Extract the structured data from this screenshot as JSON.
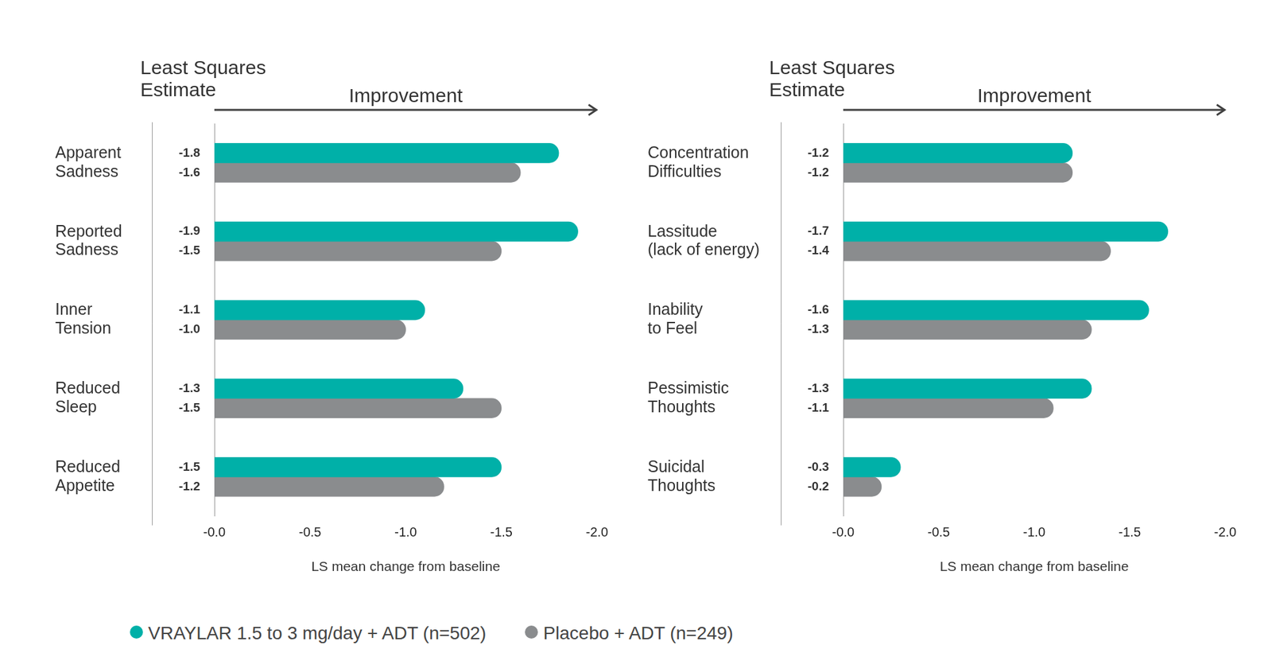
{
  "chart_data": [
    {
      "type": "bar",
      "orientation": "horizontal",
      "annotations": [
        {
          "text": [
            "Least Squares",
            "Estimate"
          ]
        },
        {
          "text": "Improvement"
        }
      ],
      "categories": [
        [
          "Apparent",
          "Sadness"
        ],
        [
          "Reported",
          "Sadness"
        ],
        [
          "Inner",
          "Tension"
        ],
        [
          "Reduced",
          "Sleep"
        ],
        [
          "Reduced",
          "Appetite"
        ]
      ],
      "series": [
        {
          "name": "VRAYLAR 1.5 to 3 mg/day + ADT (n=502)",
          "color": "#00b0a8",
          "values": [
            -1.8,
            -1.9,
            -1.1,
            -1.3,
            -1.5
          ],
          "value_labels": [
            "-1.8",
            "-1.9",
            "-1.1",
            "-1.3",
            "-1.5"
          ]
        },
        {
          "name": "Placebo + ADT (n=249)",
          "color": "#8a8c8e",
          "values": [
            -1.6,
            -1.5,
            -1.0,
            -1.5,
            -1.2
          ],
          "value_labels": [
            "-1.6",
            "-1.5",
            "-1.0",
            "-1.5",
            "-1.2"
          ]
        }
      ],
      "xlabel": "LS mean change from baseline",
      "xlim": [
        0,
        -2
      ],
      "xticks": [
        {
          "value": 0,
          "label": "-0.0"
        },
        -0.5,
        {
          "value": -1,
          "label": "-1.0"
        },
        -1.5,
        {
          "value": -2,
          "label": "-2.0"
        }
      ],
      "data_labels": true,
      "grid": false,
      "legend": "bottom"
    },
    {
      "type": "bar",
      "orientation": "horizontal",
      "annotations": [
        {
          "text": [
            "Least Squares",
            "Estimate"
          ]
        },
        {
          "text": "Improvement"
        }
      ],
      "categories": [
        [
          "Concentration",
          "Difficulties"
        ],
        [
          "Lassitude",
          "(lack of energy)"
        ],
        [
          "Inability",
          "to Feel"
        ],
        [
          "Pessimistic",
          "Thoughts"
        ],
        [
          "Suicidal",
          "Thoughts"
        ]
      ],
      "series": [
        {
          "name": "VRAYLAR 1.5 to 3 mg/day + ADT (n=502)",
          "color": "#00b0a8",
          "values": [
            -1.2,
            -1.7,
            -1.6,
            -1.3,
            -0.3
          ],
          "value_labels": [
            "-1.2",
            "-1.7",
            "-1.6",
            "-1.3",
            "-0.3"
          ]
        },
        {
          "name": "Placebo + ADT (n=249)",
          "color": "#8a8c8e",
          "values": [
            -1.2,
            -1.4,
            -1.3,
            -1.1,
            -0.2
          ],
          "value_labels": [
            "-1.2",
            "-1.4",
            "-1.3",
            "-1.1",
            "-0.2"
          ]
        }
      ],
      "xlabel": "LS mean change from baseline",
      "xlim": [
        0,
        -2
      ],
      "xticks": [
        {
          "value": 0,
          "label": "-0.0"
        },
        -0.5,
        {
          "value": -1,
          "label": "-1.0"
        },
        -1.5,
        {
          "value": -2,
          "label": "-2.0"
        }
      ],
      "data_labels": true,
      "grid": false,
      "legend": "bottom"
    }
  ]
}
